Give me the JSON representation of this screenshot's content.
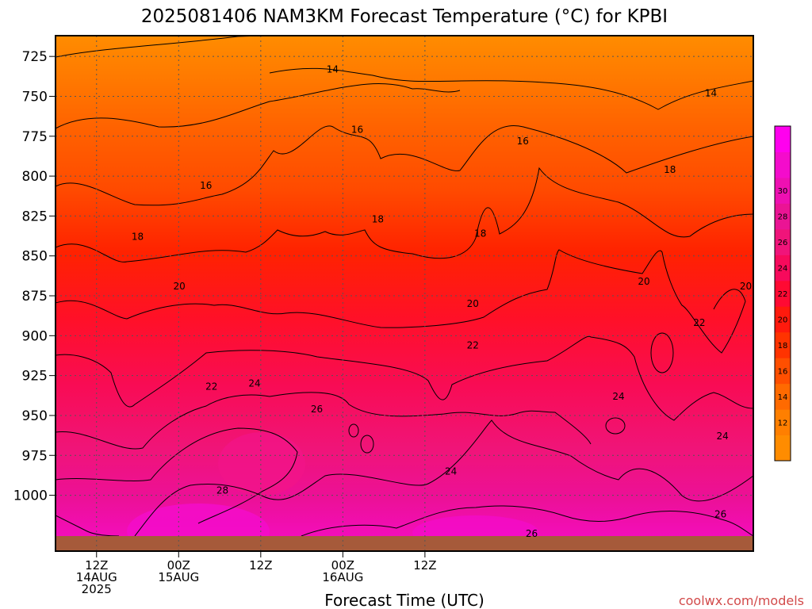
{
  "chart_data": {
    "type": "heatmap",
    "title": "2025081406 NAM3KM Forecast Temperature (°C) for KPBI",
    "xlabel": "Forecast Time (UTC)",
    "credit": "coolwx.com/models",
    "y_ticks": [
      "725",
      "750",
      "775",
      "800",
      "825",
      "850",
      "875",
      "900",
      "925",
      "950",
      "975",
      "1000"
    ],
    "x_ticks": [
      {
        "line1": "12Z",
        "line2": "14AUG",
        "line3": "2025"
      },
      {
        "line1": "00Z",
        "line2": "15AUG",
        "line3": ""
      },
      {
        "line1": "12Z",
        "line2": "",
        "line3": ""
      },
      {
        "line1": "00Z",
        "line2": "16AUG",
        "line3": ""
      },
      {
        "line1": "12Z",
        "line2": "",
        "line3": ""
      }
    ],
    "colorbar": {
      "ticks": [
        "12",
        "14",
        "16",
        "18",
        "20",
        "22",
        "24",
        "26",
        "28",
        "30"
      ],
      "colors": [
        "#ff8c00",
        "#ff7f00",
        "#ff6a00",
        "#ff4f00",
        "#ff3300",
        "#ff1a0d",
        "#ff0a33",
        "#f70a5c",
        "#f0147a",
        "#ea1494",
        "#ee10b2",
        "#f40ccc",
        "#ff00ee"
      ]
    },
    "contour_labels": [
      {
        "value": "14",
        "hour": 40.5,
        "p": 733
      },
      {
        "value": "14",
        "hour": 95.8,
        "p": 748
      },
      {
        "value": "16",
        "hour": 22.0,
        "p": 806
      },
      {
        "value": "16",
        "hour": 44.1,
        "p": 771
      },
      {
        "value": "16",
        "hour": 68.3,
        "p": 778
      },
      {
        "value": "18",
        "hour": 12.0,
        "p": 838
      },
      {
        "value": "18",
        "hour": 47.1,
        "p": 827
      },
      {
        "value": "18",
        "hour": 62.1,
        "p": 836
      },
      {
        "value": "18",
        "hour": 89.8,
        "p": 796
      },
      {
        "value": "20",
        "hour": 18.1,
        "p": 869
      },
      {
        "value": "20",
        "hour": 61.0,
        "p": 880
      },
      {
        "value": "20",
        "hour": 86.0,
        "p": 866
      },
      {
        "value": "20",
        "hour": 100.9,
        "p": 869
      },
      {
        "value": "22",
        "hour": 22.8,
        "p": 932
      },
      {
        "value": "22",
        "hour": 61.0,
        "p": 906
      },
      {
        "value": "22",
        "hour": 94.1,
        "p": 892
      },
      {
        "value": "24",
        "hour": 29.1,
        "p": 930
      },
      {
        "value": "24",
        "hour": 57.8,
        "p": 985
      },
      {
        "value": "24",
        "hour": 82.3,
        "p": 938
      },
      {
        "value": "24",
        "hour": 97.5,
        "p": 963
      },
      {
        "value": "26",
        "hour": 38.2,
        "p": 946
      },
      {
        "value": "26",
        "hour": 69.6,
        "p": 1024
      },
      {
        "value": "26",
        "hour": 97.2,
        "p": 1012
      },
      {
        "value": "28",
        "hour": 24.4,
        "p": 997
      }
    ]
  }
}
